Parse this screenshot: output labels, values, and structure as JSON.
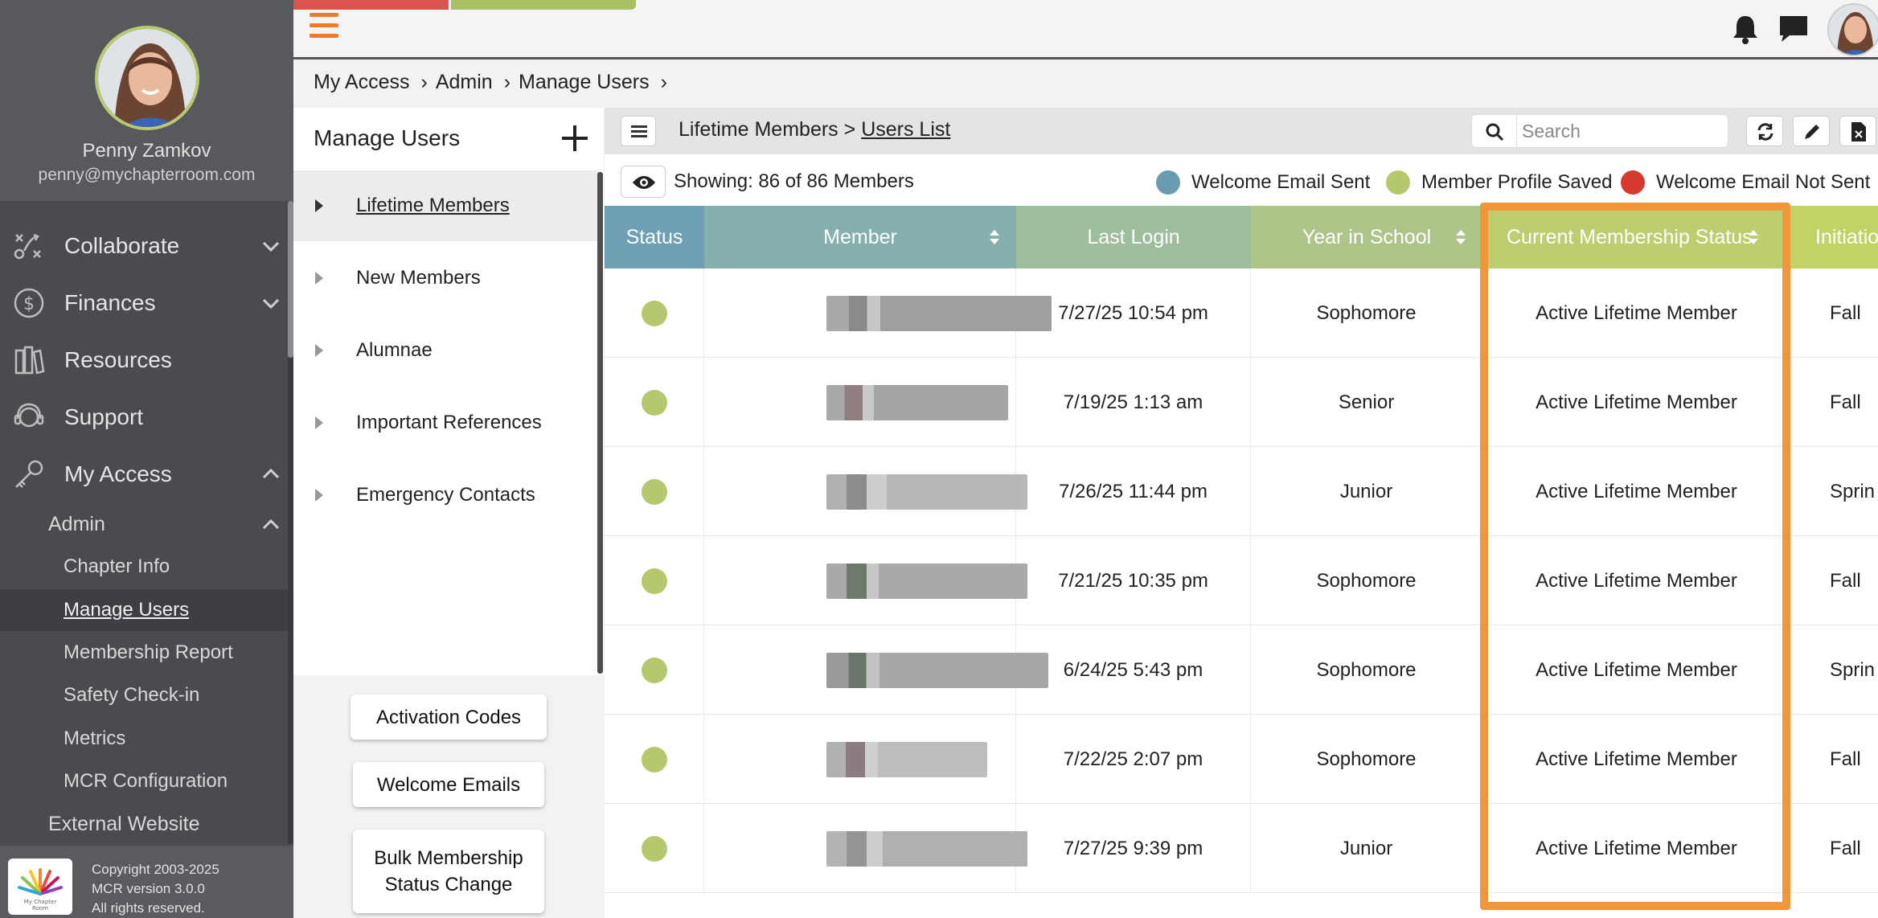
{
  "user": {
    "name": "Penny Zamkov",
    "email": "penny@mychapterroom.com"
  },
  "sidebar": {
    "nav": [
      {
        "label": "Collaborate",
        "icon": "collaborate-icon"
      },
      {
        "label": "Finances",
        "icon": "dollar-icon"
      },
      {
        "label": "Resources",
        "icon": "books-icon"
      },
      {
        "label": "Support",
        "icon": "headset-icon"
      },
      {
        "label": "My Access",
        "icon": "key-icon"
      }
    ],
    "admin_label": "Admin",
    "admin_items": [
      "Chapter Info",
      "Manage Users",
      "Membership Report",
      "Safety Check-in",
      "Metrics",
      "MCR Configuration"
    ],
    "external_label": "External Website",
    "footer": {
      "line1": "Copyright 2003-2025",
      "line2": "MCR version 3.0.0",
      "line3": "All rights reserved."
    }
  },
  "breadcrumb": [
    "My Access",
    "Admin",
    "Manage Users"
  ],
  "panel": {
    "title": "Manage Users",
    "tree": [
      "Lifetime Members",
      "New Members",
      "Alumnae",
      "Important References",
      "Emergency Contacts"
    ],
    "buttons": {
      "activation": "Activation Codes",
      "welcome": "Welcome Emails",
      "bulk": "Bulk Membership Status Change"
    }
  },
  "list": {
    "crumb_parent": "Lifetime Members",
    "crumb_sep": ">",
    "crumb_current": "Users List",
    "search_placeholder": "Search",
    "showing": "Showing: 86 of 86 Members",
    "legend": [
      {
        "label": "Welcome Email Sent",
        "color": "#6b9bb0"
      },
      {
        "label": "Member Profile Saved",
        "color": "#b6c86d"
      },
      {
        "label": "Welcome Email Not Sent",
        "color": "#d63a2f"
      }
    ]
  },
  "table": {
    "columns": [
      "Status",
      "Member",
      "Last Login",
      "Year in School",
      "Current Membership Status",
      "Initiatio"
    ],
    "column_colors": [
      "#6f9fb4",
      "#86afb0",
      "#9ebd9c",
      "#aec58a",
      "#bcce6f",
      "#c3d264"
    ],
    "status_color": "#b6c86d",
    "rows": [
      {
        "last_login": "7/27/25 10:54 pm",
        "year": "Sophomore",
        "status": "Active Lifetime Member",
        "init": "Fall"
      },
      {
        "last_login": "7/19/25 1:13 am",
        "year": "Senior",
        "status": "Active Lifetime Member",
        "init": "Fall"
      },
      {
        "last_login": "7/26/25 11:44 pm",
        "year": "Junior",
        "status": "Active Lifetime Member",
        "init": "Sprin"
      },
      {
        "last_login": "7/21/25 10:35 pm",
        "year": "Sophomore",
        "status": "Active Lifetime Member",
        "init": "Fall"
      },
      {
        "last_login": "6/24/25 5:43 pm",
        "year": "Sophomore",
        "status": "Active Lifetime Member",
        "init": "Sprin"
      },
      {
        "last_login": "7/22/25 2:07 pm",
        "year": "Sophomore",
        "status": "Active Lifetime Member",
        "init": "Fall"
      },
      {
        "last_login": "7/27/25 9:39 pm",
        "year": "Junior",
        "status": "Active Lifetime Member",
        "init": "Fall"
      }
    ]
  }
}
